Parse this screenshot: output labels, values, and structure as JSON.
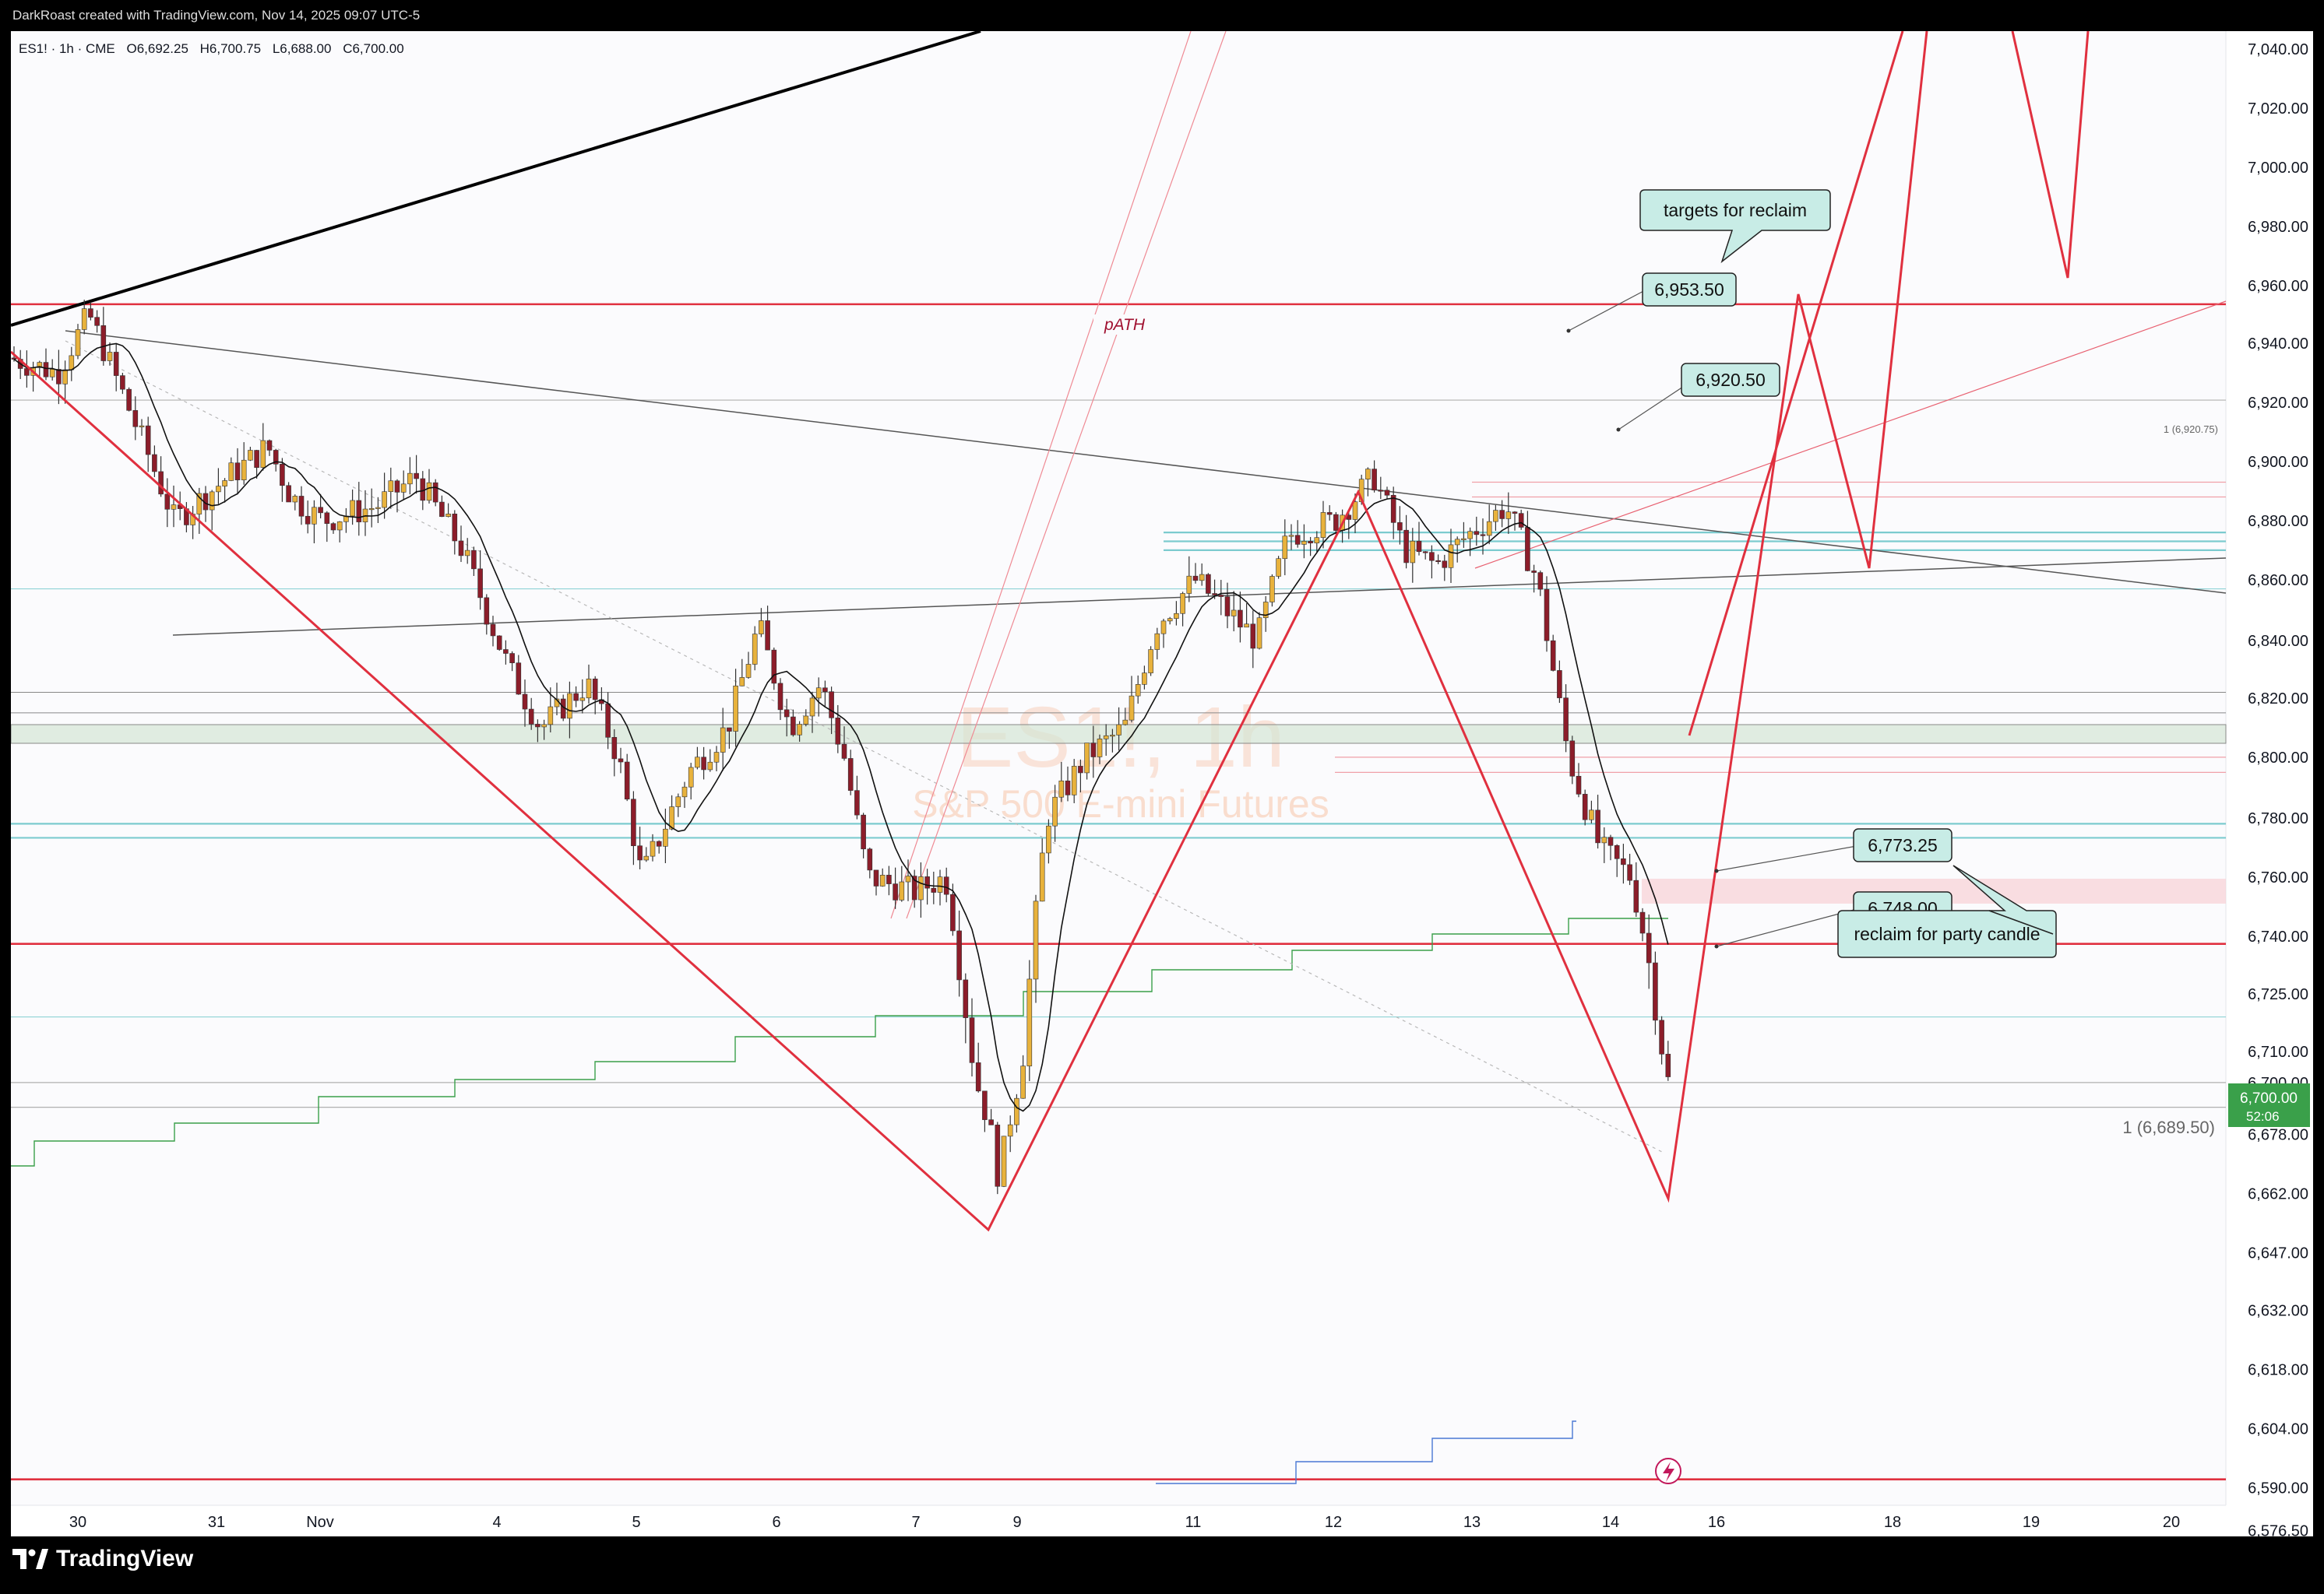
{
  "header": {
    "credit": "DarkRoast created with TradingView.com, Nov 14, 2025 09:07 UTC-5"
  },
  "symbol_info": {
    "symbol": "ES1! · 1h · CME",
    "open": "O6,692.25",
    "high": "H6,700.75",
    "low": "L6,688.00",
    "close": "C6,700.00"
  },
  "watermark": {
    "symbol": "ES1!, 1h",
    "description": "S&P 500 E-mini Futures"
  },
  "footer": {
    "brand": "TradingView"
  },
  "price_tag": {
    "price": "6,700.00",
    "countdown": "52:06"
  },
  "colors": {
    "red": "#e0303f",
    "black": "#000000",
    "green_ma": "#2e9a3a",
    "teal": "#7ccbcf",
    "label_bg": "#c8ece6",
    "candle_up": "#e8b23c",
    "candle_down": "#8c1d2a",
    "last_price": "#3aa04a"
  },
  "annotations": {
    "path_label": "pATH",
    "targets_note": "targets for reclaim",
    "reclaim_note": "reclaim for party candle",
    "level_6953": "6,953.50",
    "level_6920": "6,920.50",
    "level_6773": "6,773.25",
    "level_6748": "6,748.00",
    "fib_small": "1 (6,920.75)",
    "fib_large": "1 (6,689.50)"
  },
  "chart_data": {
    "type": "candlestick",
    "title": "ES1! · 1h · CME",
    "price_axis_ticks": [
      "7,040.00",
      "7,020.00",
      "7,000.00",
      "6,980.00",
      "6,960.00",
      "6,940.00",
      "6,920.00",
      "6,900.00",
      "6,880.00",
      "6,860.00",
      "6,840.00",
      "6,820.00",
      "6,800.00",
      "6,780.00",
      "6,760.00",
      "6,740.00",
      "6,725.00",
      "6,710.00",
      "6,700.00",
      "6,678.00",
      "6,662.00",
      "6,647.00",
      "6,632.00",
      "6,618.00",
      "6,604.00",
      "6,590.00",
      "6,576.50"
    ],
    "time_axis_ticks": [
      "30",
      "31",
      "Nov",
      "4",
      "5",
      "6",
      "7",
      "9",
      "11",
      "12",
      "13",
      "14",
      "16",
      "18",
      "19",
      "20"
    ],
    "horizontal_levels": [
      {
        "price": 6953.5,
        "style": "red",
        "label": "pATH"
      },
      {
        "price": 6920.75,
        "style": "gray-thin"
      },
      {
        "price": 6893,
        "style": "pink-thin"
      },
      {
        "price": 6888,
        "style": "pink-thin"
      },
      {
        "price": 6876,
        "style": "teal"
      },
      {
        "price": 6873,
        "style": "teal"
      },
      {
        "price": 6870,
        "style": "teal"
      },
      {
        "price": 6857,
        "style": "teal-thin"
      },
      {
        "price": 6822,
        "style": "zone-green-bottom"
      },
      {
        "price": 6815,
        "style": "zone-green-top"
      },
      {
        "price": 6800,
        "style": "pink-thin"
      },
      {
        "price": 6795,
        "style": "pink-thin"
      },
      {
        "price": 6778,
        "style": "teal"
      },
      {
        "price": 6773.25,
        "style": "teal"
      },
      {
        "price": 6738,
        "style": "red"
      },
      {
        "price": 6719,
        "style": "teal-thin"
      },
      {
        "price": 6700,
        "style": "gray-thin"
      },
      {
        "price": 6689.5,
        "style": "gray-thin"
      },
      {
        "price": 6592,
        "style": "red"
      }
    ],
    "red_zigzag_path_prices": [
      {
        "time": "Oct 29",
        "price": 6945
      },
      {
        "time": "Nov 7",
        "price": 6657
      },
      {
        "time": "Nov 12",
        "price": 6897
      },
      {
        "time": "Nov 14",
        "price": 6667
      },
      {
        "time": "Nov 16",
        "price": 6968
      },
      {
        "time": "Nov 17",
        "price": 6875
      },
      {
        "time": "Nov 18",
        "price": 7058
      },
      {
        "time": "Nov 19",
        "price": 6972
      },
      {
        "time": "Nov 20",
        "price": 7058
      }
    ],
    "last_price": 6700.0
  }
}
